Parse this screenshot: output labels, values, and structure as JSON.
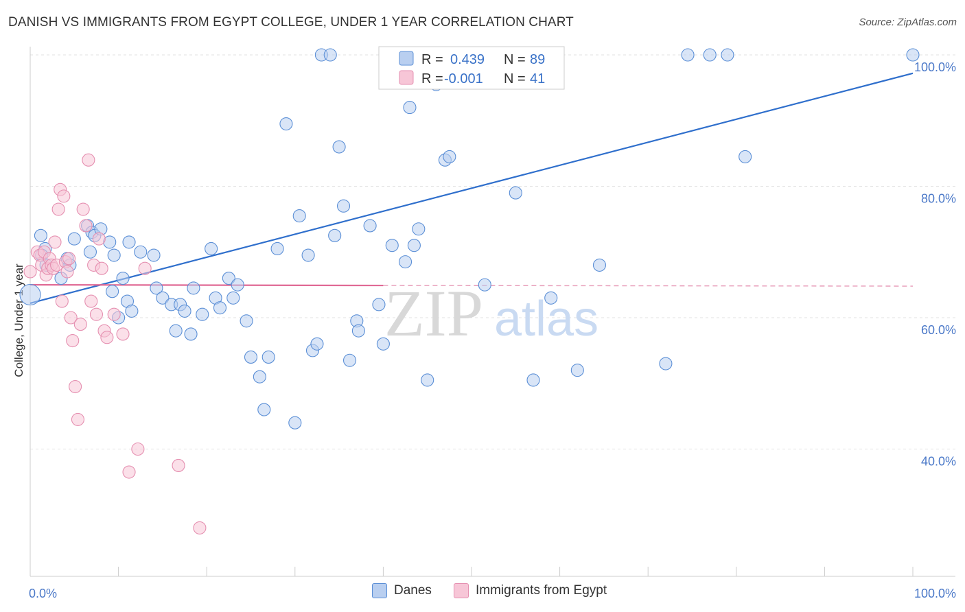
{
  "chart_data": {
    "type": "scatter",
    "title": "DANISH VS IMMIGRANTS FROM EGYPT COLLEGE, UNDER 1 YEAR CORRELATION CHART",
    "source": "Source: ZipAtlas.com",
    "ylabel": "College, Under 1 year",
    "xlim": [
      0,
      100
    ],
    "ylim": [
      22,
      102
    ],
    "x_ticks": [
      {
        "value": 0,
        "label": "0.0%"
      },
      {
        "value": 100,
        "label": "100.0%"
      }
    ],
    "y_ticks": [
      {
        "value": 40,
        "label": "40.0%"
      },
      {
        "value": 60,
        "label": "60.0%"
      },
      {
        "value": 80,
        "label": "80.0%"
      },
      {
        "value": 100,
        "label": "100.0%"
      }
    ],
    "watermark": {
      "zip": "ZIP",
      "atlas": "atlas"
    },
    "legend": {
      "rows": [
        {
          "r_label": "R =",
          "r_value": "0.439",
          "n_label": "N =",
          "n_value": "89"
        },
        {
          "r_label": "R =",
          "r_value": "-0.001",
          "n_label": "N =",
          "n_value": "41"
        }
      ]
    },
    "series": [
      {
        "name": "Danes",
        "color": "#5b8fd6",
        "fill": "#b9cff0",
        "trend": {
          "x0": 0,
          "y0": 62.2,
          "x1": 100,
          "y1": 97.2
        },
        "points": [
          [
            0,
            63.5
          ],
          [
            1.2,
            72.5
          ],
          [
            1.7,
            70.5
          ],
          [
            1.3,
            69.5
          ],
          [
            1.8,
            68
          ],
          [
            3.5,
            66
          ],
          [
            4.2,
            69
          ],
          [
            4.5,
            68
          ],
          [
            5,
            72
          ],
          [
            6.5,
            74
          ],
          [
            7,
            73
          ],
          [
            7.3,
            72.5
          ],
          [
            6.8,
            70
          ],
          [
            8,
            73.5
          ],
          [
            9,
            71.5
          ],
          [
            9.5,
            69.5
          ],
          [
            10.5,
            66
          ],
          [
            9.3,
            64
          ],
          [
            10,
            60
          ],
          [
            11,
            62.5
          ],
          [
            11.5,
            61
          ],
          [
            11.2,
            71.5
          ],
          [
            12.5,
            70
          ],
          [
            14,
            69.5
          ],
          [
            14.3,
            64.5
          ],
          [
            15,
            63
          ],
          [
            16,
            62
          ],
          [
            17,
            62
          ],
          [
            16.5,
            58
          ],
          [
            18.2,
            57.5
          ],
          [
            17.5,
            61
          ],
          [
            18.5,
            64.5
          ],
          [
            20.5,
            70.5
          ],
          [
            19.5,
            60.5
          ],
          [
            21,
            63
          ],
          [
            21.5,
            61.5
          ],
          [
            22.5,
            66
          ],
          [
            23,
            63
          ],
          [
            23.5,
            65
          ],
          [
            24.5,
            59.5
          ],
          [
            25,
            54
          ],
          [
            26,
            51
          ],
          [
            26.5,
            46
          ],
          [
            27,
            54
          ],
          [
            28,
            70.5
          ],
          [
            29,
            89.5
          ],
          [
            30,
            44
          ],
          [
            30.5,
            75.5
          ],
          [
            31.5,
            69.5
          ],
          [
            32,
            55
          ],
          [
            32.5,
            56
          ],
          [
            33,
            100
          ],
          [
            34,
            100
          ],
          [
            34.5,
            72.5
          ],
          [
            35,
            86
          ],
          [
            35.5,
            77
          ],
          [
            36.2,
            53.5
          ],
          [
            37,
            59.5
          ],
          [
            37.2,
            58
          ],
          [
            38.5,
            74
          ],
          [
            39.5,
            62
          ],
          [
            40,
            56
          ],
          [
            41,
            71
          ],
          [
            42.5,
            68.5
          ],
          [
            43,
            92
          ],
          [
            43.5,
            71
          ],
          [
            44,
            73.5
          ],
          [
            45,
            96
          ],
          [
            45,
            50.5
          ],
          [
            46,
            95.5
          ],
          [
            47,
            84
          ],
          [
            47.5,
            84.5
          ],
          [
            49,
            100
          ],
          [
            51.5,
            65
          ],
          [
            53,
            100
          ],
          [
            55,
            79
          ],
          [
            57,
            50.5
          ],
          [
            59,
            63
          ],
          [
            62,
            52
          ],
          [
            64.5,
            68
          ],
          [
            72,
            53
          ],
          [
            74.5,
            100
          ],
          [
            77,
            100
          ],
          [
            79,
            100
          ],
          [
            81,
            84.5
          ],
          [
            100,
            100
          ]
        ]
      },
      {
        "name": "Immigrants from Egypt",
        "color": "#e58fb0",
        "fill": "#f7c6d7",
        "trend": {
          "x0": 0,
          "y0": 65,
          "x1": 40,
          "y1": 64.9
        },
        "trend_dashed": {
          "x0": 40,
          "y0": 64.9,
          "x1": 100,
          "y1": 64.8
        },
        "points": [
          [
            0,
            67
          ],
          [
            0.8,
            70
          ],
          [
            1.1,
            69.5
          ],
          [
            1.3,
            68
          ],
          [
            1.6,
            70
          ],
          [
            1.8,
            66.5
          ],
          [
            2,
            67.5
          ],
          [
            2.2,
            69
          ],
          [
            2.4,
            68
          ],
          [
            2.6,
            67.5
          ],
          [
            2.8,
            71.5
          ],
          [
            3,
            68
          ],
          [
            3.2,
            76.5
          ],
          [
            3.4,
            79.5
          ],
          [
            3.6,
            62.5
          ],
          [
            3.8,
            78.5
          ],
          [
            4,
            68.5
          ],
          [
            4.2,
            67
          ],
          [
            4.4,
            69
          ],
          [
            4.6,
            60
          ],
          [
            4.8,
            56.5
          ],
          [
            5.1,
            49.5
          ],
          [
            5.4,
            44.5
          ],
          [
            5.7,
            59
          ],
          [
            6,
            76.5
          ],
          [
            6.3,
            74
          ],
          [
            6.6,
            84
          ],
          [
            6.9,
            62.5
          ],
          [
            7.2,
            68
          ],
          [
            7.5,
            60.5
          ],
          [
            7.8,
            72
          ],
          [
            8.1,
            67.5
          ],
          [
            8.4,
            58
          ],
          [
            8.7,
            57
          ],
          [
            9.5,
            60.5
          ],
          [
            10.5,
            57.5
          ],
          [
            11.2,
            36.5
          ],
          [
            12.2,
            40
          ],
          [
            13,
            67.5
          ],
          [
            16.8,
            37.5
          ],
          [
            19.2,
            28
          ]
        ]
      }
    ]
  }
}
